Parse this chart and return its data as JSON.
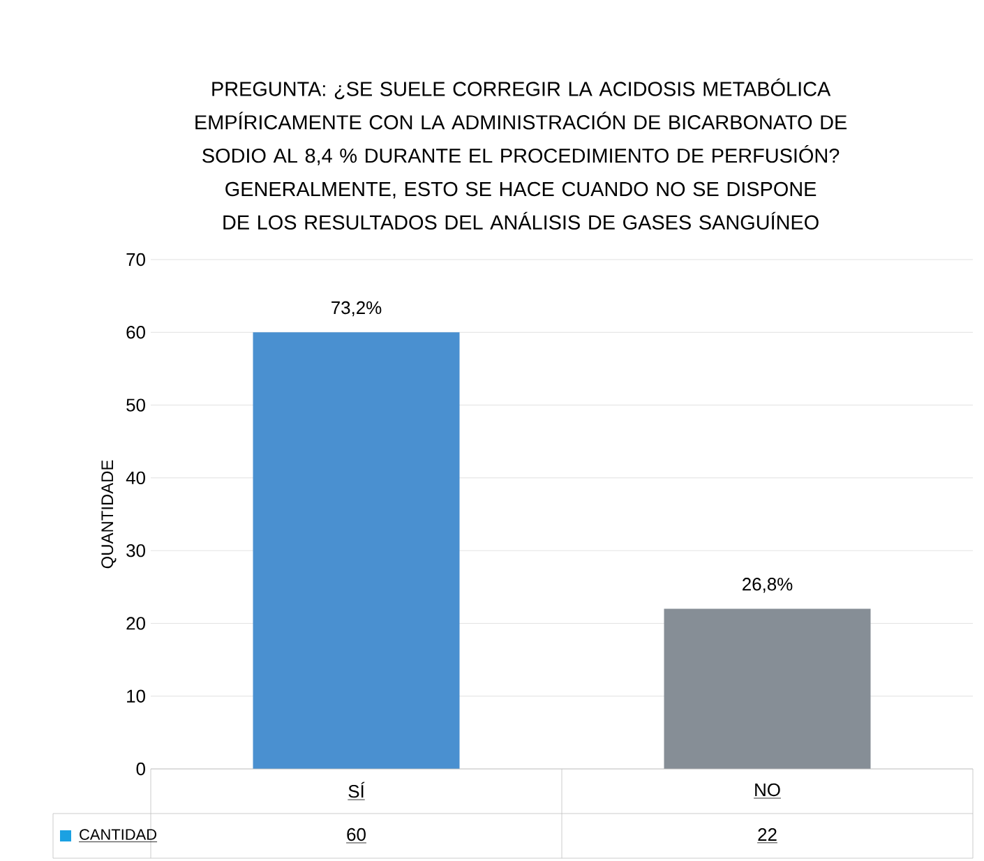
{
  "chart_data": {
    "type": "bar",
    "title": "PREGUNTA: ¿SE SUELE CORREGIR LA ACIDOSIS METABÓLICA EMPÍRICAMENTE CON LA ADMINISTRACIÓN DE BICARBONATO DE SODIO AL 8,4 % DURANTE EL PROCEDIMIENTO DE PERFUSIÓN? GENERALMENTE, ESTO SE HACE CUANDO NO SE DISPONE DE LOS RESULTADOS DEL ANÁLISIS DE GASES SANGUÍNEO",
    "ylabel": "QUANTIDADE",
    "categories": [
      "SÍ",
      "NO"
    ],
    "series": [
      {
        "name": "CANTIDAD",
        "colors": [
          "#4a90d0",
          "#868e96"
        ],
        "values": [
          60,
          22
        ],
        "value_labels": [
          "60",
          "22"
        ]
      }
    ],
    "annotations": [
      {
        "text": "73,2%",
        "x": "SÍ",
        "y": 60
      },
      {
        "text": "26,8%",
        "x": "NO",
        "y": 22
      }
    ],
    "ylim": [
      0,
      70
    ],
    "yticks": [
      0,
      10,
      20,
      30,
      40,
      50,
      60,
      70
    ],
    "grid": "y",
    "legend": "bottom"
  }
}
